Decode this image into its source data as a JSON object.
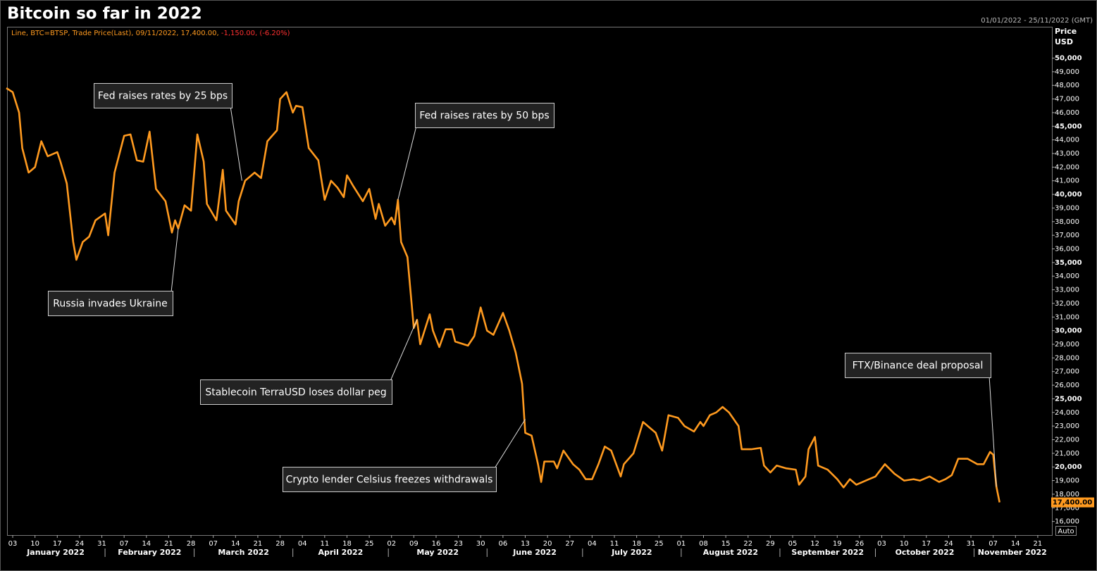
{
  "chart_data": {
    "type": "line",
    "title": "Bitcoin so far in 2022",
    "date_range": "01/01/2022 - 25/11/2022 (GMT)",
    "legend": {
      "text": "Line, BTC=BTSP, Trade Price(Last), 09/11/2022, 17,400.00,",
      "change": "-1,150.00, (-6.20%)"
    },
    "y_label": [
      "Price",
      "USD"
    ],
    "auto_button": "Auto",
    "x": [
      "2022-01-01",
      "2022-01-03",
      "2022-01-05",
      "2022-01-06",
      "2022-01-08",
      "2022-01-10",
      "2022-01-12",
      "2022-01-14",
      "2022-01-17",
      "2022-01-18",
      "2022-01-20",
      "2022-01-22",
      "2022-01-23",
      "2022-01-25",
      "2022-01-27",
      "2022-01-29",
      "2022-02-01",
      "2022-02-02",
      "2022-02-04",
      "2022-02-07",
      "2022-02-09",
      "2022-02-11",
      "2022-02-13",
      "2022-02-15",
      "2022-02-17",
      "2022-02-20",
      "2022-02-22",
      "2022-02-23",
      "2022-02-24",
      "2022-02-26",
      "2022-02-28",
      "2022-03-02",
      "2022-03-04",
      "2022-03-05",
      "2022-03-08",
      "2022-03-10",
      "2022-03-11",
      "2022-03-14",
      "2022-03-15",
      "2022-03-17",
      "2022-03-20",
      "2022-03-22",
      "2022-03-24",
      "2022-03-27",
      "2022-03-28",
      "2022-03-30",
      "2022-04-01",
      "2022-04-02",
      "2022-04-04",
      "2022-04-06",
      "2022-04-09",
      "2022-04-11",
      "2022-04-13",
      "2022-04-15",
      "2022-04-17",
      "2022-04-18",
      "2022-04-20",
      "2022-04-23",
      "2022-04-25",
      "2022-04-27",
      "2022-04-28",
      "2022-04-30",
      "2022-05-02",
      "2022-05-03",
      "2022-05-04",
      "2022-05-05",
      "2022-05-07",
      "2022-05-09",
      "2022-05-10",
      "2022-05-11",
      "2022-05-14",
      "2022-05-15",
      "2022-05-17",
      "2022-05-19",
      "2022-05-21",
      "2022-05-22",
      "2022-05-26",
      "2022-05-28",
      "2022-05-30",
      "2022-06-01",
      "2022-06-03",
      "2022-06-06",
      "2022-06-08",
      "2022-06-10",
      "2022-06-12",
      "2022-06-13",
      "2022-06-15",
      "2022-06-17",
      "2022-06-18",
      "2022-06-19",
      "2022-06-22",
      "2022-06-23",
      "2022-06-25",
      "2022-06-28",
      "2022-06-30",
      "2022-07-02",
      "2022-07-04",
      "2022-07-06",
      "2022-07-08",
      "2022-07-10",
      "2022-07-13",
      "2022-07-14",
      "2022-07-17",
      "2022-07-20",
      "2022-07-22",
      "2022-07-24",
      "2022-07-26",
      "2022-07-28",
      "2022-07-31",
      "2022-08-02",
      "2022-08-05",
      "2022-08-07",
      "2022-08-08",
      "2022-08-10",
      "2022-08-12",
      "2022-08-14",
      "2022-08-16",
      "2022-08-19",
      "2022-08-20",
      "2022-08-23",
      "2022-08-26",
      "2022-08-27",
      "2022-08-29",
      "2022-08-31",
      "2022-09-03",
      "2022-09-06",
      "2022-09-07",
      "2022-09-09",
      "2022-09-10",
      "2022-09-12",
      "2022-09-13",
      "2022-09-16",
      "2022-09-19",
      "2022-09-21",
      "2022-09-23",
      "2022-09-25",
      "2022-09-29",
      "2022-10-01",
      "2022-10-04",
      "2022-10-07",
      "2022-10-10",
      "2022-10-13",
      "2022-10-15",
      "2022-10-18",
      "2022-10-21",
      "2022-10-23",
      "2022-10-25",
      "2022-10-27",
      "2022-10-30",
      "2022-11-02",
      "2022-11-04",
      "2022-11-06",
      "2022-11-07",
      "2022-11-08",
      "2022-11-09"
    ],
    "series": [
      {
        "name": "BTC=BTSP",
        "color": "#ff9a1f",
        "values": [
          47800,
          47500,
          46000,
          43400,
          41600,
          42000,
          43900,
          42800,
          43100,
          42400,
          40800,
          36500,
          35200,
          36500,
          36900,
          38100,
          38600,
          37000,
          41600,
          44300,
          44400,
          42500,
          42400,
          44600,
          40400,
          39500,
          37200,
          38100,
          37500,
          39200,
          38800,
          44400,
          42400,
          39300,
          38100,
          41800,
          38800,
          37800,
          39500,
          41000,
          41600,
          41200,
          43900,
          44700,
          47000,
          47500,
          46000,
          46500,
          46400,
          43400,
          42500,
          39600,
          41000,
          40500,
          39800,
          41400,
          40600,
          39500,
          40400,
          38200,
          39300,
          37700,
          38300,
          37800,
          39600,
          36500,
          35400,
          30200,
          30800,
          29000,
          31200,
          30000,
          28800,
          30100,
          30100,
          29200,
          28900,
          29600,
          31700,
          30000,
          29700,
          31300,
          30000,
          28400,
          26100,
          22500,
          22300,
          20200,
          18900,
          20400,
          20400,
          19900,
          21200,
          20200,
          19800,
          19100,
          19100,
          20200,
          21500,
          21200,
          19300,
          20200,
          21000,
          23300,
          22900,
          22500,
          21200,
          23800,
          23600,
          23000,
          22600,
          23300,
          23000,
          23800,
          24000,
          24400,
          24000,
          23000,
          21300,
          21300,
          21400,
          20100,
          19600,
          20100,
          19900,
          19800,
          18700,
          19300,
          21300,
          22200,
          20100,
          19800,
          19100,
          18500,
          19100,
          18700,
          19100,
          19300,
          20200,
          19500,
          19000,
          19100,
          19000,
          19300,
          18900,
          19100,
          19400,
          20600,
          20600,
          20200,
          20200,
          21100,
          20900,
          18550,
          17400
        ]
      }
    ],
    "last_value_label": "17,400.00",
    "xlim": [
      "2022-01-01",
      "2022-11-25"
    ],
    "xticks": [
      {
        "value": "2022-01-03",
        "label": "03"
      },
      {
        "value": "2022-01-10",
        "label": "10"
      },
      {
        "value": "2022-01-17",
        "label": "17"
      },
      {
        "value": "2022-01-24",
        "label": "24"
      },
      {
        "value": "2022-01-31",
        "label": "31"
      },
      {
        "value": "2022-02-07",
        "label": "07"
      },
      {
        "value": "2022-02-14",
        "label": "14"
      },
      {
        "value": "2022-02-21",
        "label": "21"
      },
      {
        "value": "2022-02-28",
        "label": "28"
      },
      {
        "value": "2022-03-07",
        "label": "07"
      },
      {
        "value": "2022-03-14",
        "label": "14"
      },
      {
        "value": "2022-03-21",
        "label": "21"
      },
      {
        "value": "2022-03-28",
        "label": "28"
      },
      {
        "value": "2022-04-04",
        "label": "04"
      },
      {
        "value": "2022-04-11",
        "label": "11"
      },
      {
        "value": "2022-04-18",
        "label": "18"
      },
      {
        "value": "2022-04-25",
        "label": "25"
      },
      {
        "value": "2022-05-02",
        "label": "02"
      },
      {
        "value": "2022-05-09",
        "label": "09"
      },
      {
        "value": "2022-05-16",
        "label": "16"
      },
      {
        "value": "2022-05-23",
        "label": "23"
      },
      {
        "value": "2022-05-30",
        "label": "30"
      },
      {
        "value": "2022-06-06",
        "label": "06"
      },
      {
        "value": "2022-06-13",
        "label": "13"
      },
      {
        "value": "2022-06-20",
        "label": "20"
      },
      {
        "value": "2022-06-27",
        "label": "27"
      },
      {
        "value": "2022-07-04",
        "label": "04"
      },
      {
        "value": "2022-07-11",
        "label": "11"
      },
      {
        "value": "2022-07-18",
        "label": "18"
      },
      {
        "value": "2022-07-25",
        "label": "25"
      },
      {
        "value": "2022-08-01",
        "label": "01"
      },
      {
        "value": "2022-08-08",
        "label": "08"
      },
      {
        "value": "2022-08-15",
        "label": "15"
      },
      {
        "value": "2022-08-22",
        "label": "22"
      },
      {
        "value": "2022-08-29",
        "label": "29"
      },
      {
        "value": "2022-09-05",
        "label": "05"
      },
      {
        "value": "2022-09-12",
        "label": "12"
      },
      {
        "value": "2022-09-19",
        "label": "19"
      },
      {
        "value": "2022-09-26",
        "label": "26"
      },
      {
        "value": "2022-10-03",
        "label": "03"
      },
      {
        "value": "2022-10-10",
        "label": "10"
      },
      {
        "value": "2022-10-17",
        "label": "17"
      },
      {
        "value": "2022-10-24",
        "label": "24"
      },
      {
        "value": "2022-10-31",
        "label": "31"
      },
      {
        "value": "2022-11-07",
        "label": "07"
      },
      {
        "value": "2022-11-14",
        "label": "14"
      },
      {
        "value": "2022-11-21",
        "label": "21"
      }
    ],
    "month_labels": [
      {
        "value": "2022-01",
        "label": "January 2022"
      },
      {
        "value": "2022-02",
        "label": "February 2022"
      },
      {
        "value": "2022-03",
        "label": "March 2022"
      },
      {
        "value": "2022-04",
        "label": "April 2022"
      },
      {
        "value": "2022-05",
        "label": "May 2022"
      },
      {
        "value": "2022-06",
        "label": "June 2022"
      },
      {
        "value": "2022-07",
        "label": "July 2022"
      },
      {
        "value": "2022-08",
        "label": "August 2022"
      },
      {
        "value": "2022-09",
        "label": "September 2022"
      },
      {
        "value": "2022-10",
        "label": "October 2022"
      },
      {
        "value": "2022-11",
        "label": "November 2022"
      }
    ],
    "ylim": [
      15000,
      52300
    ],
    "yticks": [
      {
        "value": 16000,
        "label": "16,000"
      },
      {
        "value": 17000,
        "label": "17,000"
      },
      {
        "value": 18000,
        "label": "18,000"
      },
      {
        "value": 19000,
        "label": "19,000"
      },
      {
        "value": 20000,
        "label": "20,000"
      },
      {
        "value": 21000,
        "label": "21,000"
      },
      {
        "value": 22000,
        "label": "22,000"
      },
      {
        "value": 23000,
        "label": "23,000"
      },
      {
        "value": 24000,
        "label": "24,000"
      },
      {
        "value": 25000,
        "label": "25,000"
      },
      {
        "value": 26000,
        "label": "26,000"
      },
      {
        "value": 27000,
        "label": "27,000"
      },
      {
        "value": 28000,
        "label": "28,000"
      },
      {
        "value": 29000,
        "label": "29,000"
      },
      {
        "value": 30000,
        "label": "30,000"
      },
      {
        "value": 31000,
        "label": "31,000"
      },
      {
        "value": 32000,
        "label": "32,000"
      },
      {
        "value": 33000,
        "label": "33,000"
      },
      {
        "value": 34000,
        "label": "34,000"
      },
      {
        "value": 35000,
        "label": "35,000"
      },
      {
        "value": 36000,
        "label": "36,000"
      },
      {
        "value": 37000,
        "label": "37,000"
      },
      {
        "value": 38000,
        "label": "38,000"
      },
      {
        "value": 39000,
        "label": "39,000"
      },
      {
        "value": 40000,
        "label": "40,000"
      },
      {
        "value": 41000,
        "label": "41,000"
      },
      {
        "value": 42000,
        "label": "42,000"
      },
      {
        "value": 43000,
        "label": "43,000"
      },
      {
        "value": 44000,
        "label": "44,000"
      },
      {
        "value": 45000,
        "label": "45,000"
      },
      {
        "value": 46000,
        "label": "46,000"
      },
      {
        "value": 47000,
        "label": "47,000"
      },
      {
        "value": 48000,
        "label": "48,000"
      },
      {
        "value": 49000,
        "label": "49,000"
      },
      {
        "value": 50000,
        "label": "50,000"
      }
    ],
    "grid": false,
    "annotations": [
      {
        "text": "Fed raises rates by 25 bps",
        "x": "2022-03-16",
        "y": 41000
      },
      {
        "text": "Fed raises rates by 50 bps",
        "x": "2022-05-04",
        "y": 39600
      },
      {
        "text": "Russia invades Ukraine",
        "x": "2022-02-24",
        "y": 37500
      },
      {
        "text": "Stablecoin TerraUSD loses dollar peg",
        "x": "2022-05-10",
        "y": 30800
      },
      {
        "text": "Crypto lender Celsius freezes withdrawals",
        "x": "2022-06-13",
        "y": 23500
      },
      {
        "text": "FTX/Binance deal proposal",
        "x": "2022-11-08",
        "y": 18550
      }
    ]
  }
}
